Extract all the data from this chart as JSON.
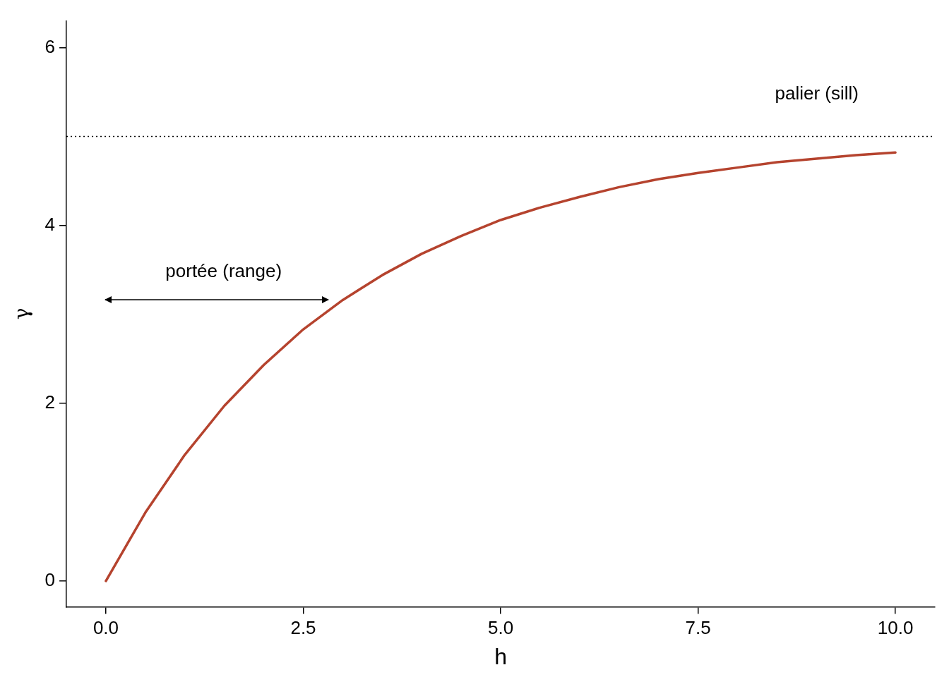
{
  "chart_data": {
    "type": "line",
    "xlabel": "h",
    "ylabel": "γ",
    "x": [
      0,
      0.5,
      1,
      1.5,
      2,
      2.5,
      3,
      3.5,
      4,
      4.5,
      5,
      5.5,
      6,
      6.5,
      7,
      7.5,
      8,
      8.5,
      9,
      9.5,
      10
    ],
    "series": [
      {
        "color": "#b5432e",
        "values": [
          0,
          0.77,
          1.42,
          1.97,
          2.43,
          2.83,
          3.16,
          3.44,
          3.68,
          3.88,
          4.06,
          4.2,
          4.32,
          4.43,
          4.52,
          4.59,
          4.65,
          4.71,
          4.75,
          4.79,
          4.82
        ]
      }
    ],
    "xlim": [
      -0.5,
      10.5
    ],
    "ylim": [
      -0.29,
      6.3
    ],
    "xticks": [
      {
        "value": 0,
        "label": "0.0"
      },
      {
        "value": 2.5,
        "label": "2.5"
      },
      {
        "value": 5,
        "label": "5.0"
      },
      {
        "value": 7.5,
        "label": "7.5"
      },
      {
        "value": 10,
        "label": "10.0"
      }
    ],
    "yticks": [
      0,
      2,
      4,
      6
    ],
    "marker": "none",
    "line_style": "solid",
    "legend": false,
    "ref_lines": [
      {
        "axis": "y",
        "value": 5,
        "color": "#000000",
        "line_style": "dotted"
      }
    ],
    "annotations": [
      "palier (sill)",
      "portée (range)"
    ]
  }
}
